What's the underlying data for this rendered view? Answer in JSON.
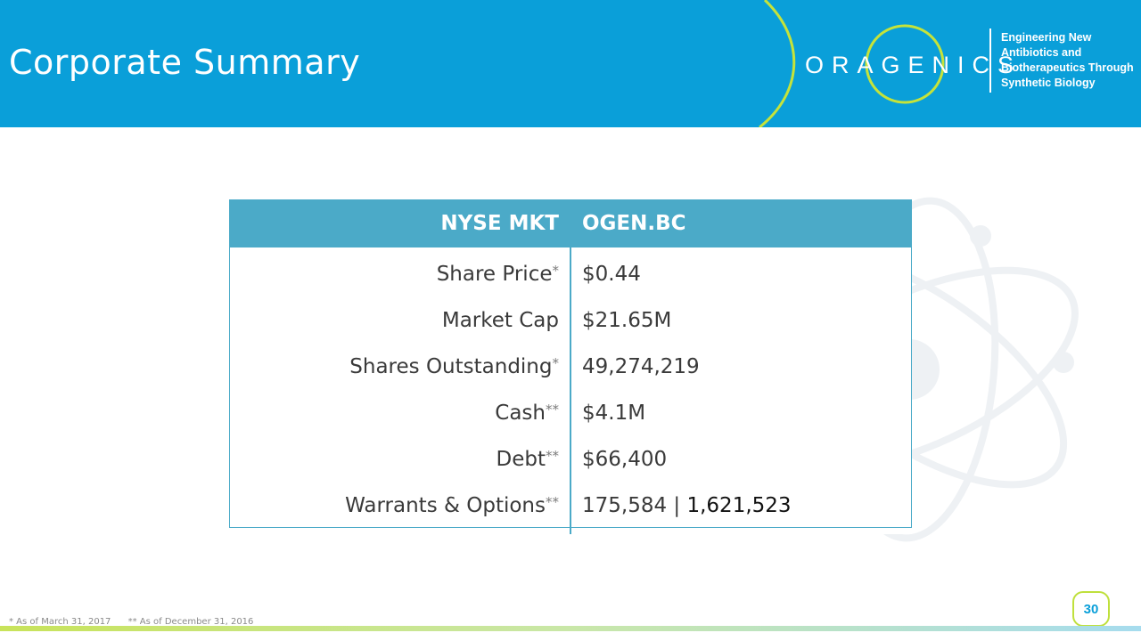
{
  "slide": {
    "title": "Corporate Summary",
    "page_number": "30"
  },
  "logo": {
    "wordmark": "ORAGENICS",
    "tagline": [
      "Engineering New",
      "Antibiotics and",
      "Biotherapeutics Through",
      "Synthetic Biology"
    ]
  },
  "table": {
    "header": [
      "NYSE MKT",
      "OGEN.BC"
    ],
    "rows": [
      {
        "label": "Share Price",
        "mark": "*",
        "value": "$0.44"
      },
      {
        "label": "Market Cap",
        "mark": "",
        "value": "$21.65M"
      },
      {
        "label": "Shares Outstanding",
        "mark": "*",
        "value": "49,274,219"
      },
      {
        "label": "Cash",
        "mark": "**",
        "value": "$4.1M"
      },
      {
        "label": "Debt",
        "mark": "**",
        "value": "$66,400"
      },
      {
        "label": "Warrants & Options",
        "mark": "**",
        "value_part1": "175,584 | ",
        "value_part2": "1,621,523"
      }
    ]
  },
  "footnotes": [
    "* As of March 31, 2017",
    "** As of  December 31, 2016"
  ],
  "colors": {
    "header_blue": "#0a9fd9",
    "table_header": "#4baac8",
    "accent_green": "#bfe03c"
  }
}
